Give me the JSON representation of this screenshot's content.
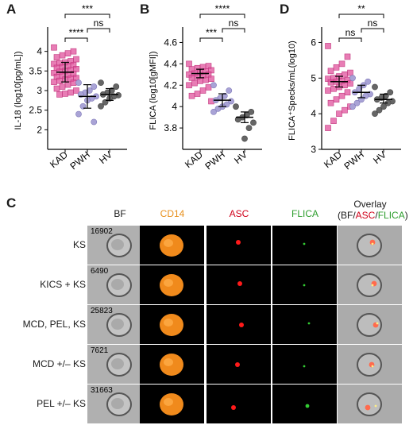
{
  "panels": {
    "A": {
      "letter": "A"
    },
    "B": {
      "letter": "B"
    },
    "C": {
      "letter": "C"
    },
    "D": {
      "letter": "D"
    }
  },
  "chart_data": [
    {
      "panel": "A",
      "type": "scatter",
      "ylabel": "IL-18 (log10[pg/mL])",
      "categories": [
        "KAD",
        "PWH",
        "HV"
      ],
      "ylim": [
        1.5,
        4.5
      ],
      "yticks": [
        2,
        2.5,
        3,
        3.5,
        4
      ],
      "tick_labels": [
        "2",
        "2.5",
        "3",
        "3.5",
        "4"
      ],
      "series": [
        {
          "category": "KAD",
          "marker": "square",
          "color": "#e0529c",
          "values": [
            4.1,
            4.0,
            3.95,
            3.9,
            3.85,
            3.8,
            3.75,
            3.72,
            3.7,
            3.68,
            3.65,
            3.62,
            3.6,
            3.58,
            3.55,
            3.52,
            3.5,
            3.48,
            3.45,
            3.42,
            3.4,
            3.38,
            3.35,
            3.32,
            3.3,
            3.28,
            3.25,
            3.22,
            3.2,
            3.15,
            3.1,
            3.05,
            3.0,
            2.95,
            2.92,
            2.9
          ],
          "mean": 3.47,
          "sd": [
            3.22,
            3.72
          ]
        },
        {
          "category": "PWH",
          "marker": "circle",
          "color": "#a9a3d6",
          "values": [
            3.2,
            3.1,
            3.0,
            2.95,
            2.9,
            2.85,
            2.8,
            2.75,
            2.6,
            2.4,
            2.2
          ],
          "mean": 2.85,
          "sd": [
            2.55,
            3.15
          ]
        },
        {
          "category": "HV",
          "marker": "circle",
          "color": "#666666",
          "values": [
            3.2,
            3.1,
            3.0,
            2.95,
            2.9,
            2.88,
            2.85,
            2.8,
            2.7,
            2.6
          ],
          "mean": 2.9,
          "sd": [
            2.75,
            3.05
          ]
        }
      ],
      "annotations": [
        {
          "from": "KAD",
          "to": "PWH",
          "text": "****"
        },
        {
          "from": "PWH",
          "to": "HV",
          "text": "ns"
        },
        {
          "from": "KAD",
          "to": "HV",
          "text": "***"
        }
      ]
    },
    {
      "panel": "B",
      "type": "scatter",
      "ylabel": "FLICA (log10[gMFI])",
      "categories": [
        "KAD",
        "PWH",
        "HV"
      ],
      "ylim": [
        3.6,
        4.7
      ],
      "yticks": [
        3.8,
        4,
        4.2,
        4.4,
        4.6
      ],
      "tick_labels": [
        "3.8",
        "4",
        "4.2",
        "4.4",
        "4.6"
      ],
      "series": [
        {
          "category": "KAD",
          "marker": "square",
          "color": "#e0529c",
          "values": [
            4.4,
            4.38,
            4.37,
            4.36,
            4.35,
            4.34,
            4.33,
            4.32,
            4.31,
            4.3,
            4.3,
            4.29,
            4.28,
            4.27,
            4.26,
            4.25,
            4.24,
            4.22,
            4.2,
            4.18,
            4.15,
            4.12,
            4.1,
            4.05
          ],
          "mean": 4.31,
          "sd": [
            4.27,
            4.35
          ]
        },
        {
          "category": "PWH",
          "marker": "circle",
          "color": "#a9a3d6",
          "values": [
            4.2,
            4.15,
            4.1,
            4.08,
            4.06,
            4.05,
            4.02,
            4.0,
            3.98,
            3.95
          ],
          "mean": 4.06,
          "sd": [
            4.0,
            4.12
          ]
        },
        {
          "category": "HV",
          "marker": "circle",
          "color": "#666666",
          "values": [
            4.0,
            3.95,
            3.92,
            3.9,
            3.88,
            3.85,
            3.8,
            3.7
          ],
          "mean": 3.9,
          "sd": [
            3.85,
            3.95
          ]
        }
      ],
      "annotations": [
        {
          "from": "KAD",
          "to": "PWH",
          "text": "***"
        },
        {
          "from": "PWH",
          "to": "HV",
          "text": "ns"
        },
        {
          "from": "KAD",
          "to": "HV",
          "text": "****"
        }
      ]
    },
    {
      "panel": "D",
      "type": "scatter",
      "ylabel": "FLICA⁺Specks/mL(log10)",
      "categories": [
        "KAD",
        "PWH",
        "HV"
      ],
      "ylim": [
        3,
        6.3
      ],
      "yticks": [
        3,
        4,
        5,
        6
      ],
      "tick_labels": [
        "3",
        "4",
        "5",
        "6"
      ],
      "series": [
        {
          "category": "KAD",
          "marker": "square",
          "color": "#e0529c",
          "values": [
            5.9,
            5.6,
            5.4,
            5.3,
            5.2,
            5.15,
            5.1,
            5.05,
            5.0,
            4.98,
            4.95,
            4.92,
            4.9,
            4.88,
            4.85,
            4.8,
            4.75,
            4.7,
            4.65,
            4.6,
            4.5,
            4.4,
            4.3,
            4.2,
            4.1,
            4.0,
            3.8,
            3.6
          ],
          "mean": 4.9,
          "sd": [
            4.75,
            5.05
          ]
        },
        {
          "category": "PWH",
          "marker": "circle",
          "color": "#a9a3d6",
          "values": [
            5.0,
            4.9,
            4.8,
            4.7,
            4.6,
            4.55,
            4.5,
            4.4,
            4.3,
            4.2
          ],
          "mean": 4.6,
          "sd": [
            4.45,
            4.8
          ]
        },
        {
          "category": "HV",
          "marker": "circle",
          "color": "#666666",
          "values": [
            4.75,
            4.6,
            4.5,
            4.45,
            4.4,
            4.35,
            4.3,
            4.2,
            4.1,
            4.0
          ],
          "mean": 4.4,
          "sd": [
            4.3,
            4.55
          ]
        }
      ],
      "annotations": [
        {
          "from": "KAD",
          "to": "PWH",
          "text": "ns"
        },
        {
          "from": "PWH",
          "to": "HV",
          "text": "ns"
        },
        {
          "from": "KAD",
          "to": "HV",
          "text": "**"
        }
      ]
    }
  ],
  "imaging": {
    "columns": [
      {
        "label": "BF",
        "color": "#1a1a1a"
      },
      {
        "label": "CD14",
        "color": "#e8901c"
      },
      {
        "label": "ASC",
        "color": "#d0021b"
      },
      {
        "label": "FLICA",
        "color": "#2e9e2e"
      },
      {
        "label_parts": [
          "Overlay",
          "(BF/",
          "ASC",
          "/",
          "FLICA",
          ")"
        ]
      }
    ],
    "rows": [
      {
        "label": "KS",
        "event_id": "16902"
      },
      {
        "label": "KICS + KS",
        "event_id": "6490"
      },
      {
        "label": "MCD, PEL, KS",
        "event_id": "25823"
      },
      {
        "label": "MCD +/– KS",
        "event_id": "7621"
      },
      {
        "label": "PEL +/– KS",
        "event_id": "31663"
      }
    ],
    "colors": {
      "cd14": "#f08a1c",
      "asc": "#ff1a1a",
      "flica": "#33cc33"
    }
  }
}
